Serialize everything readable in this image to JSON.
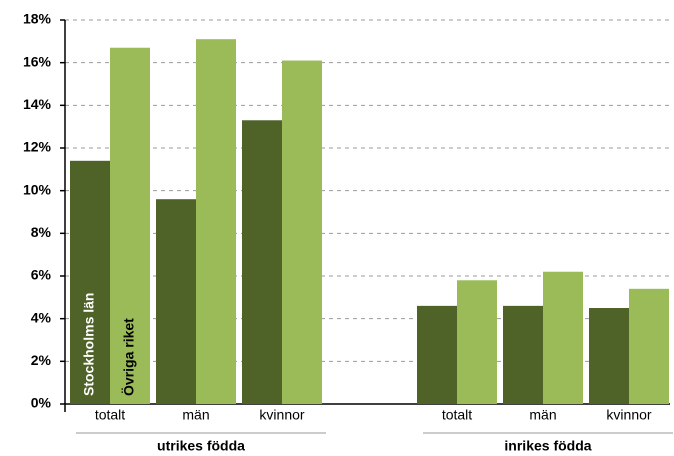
{
  "chart_data": {
    "type": "bar",
    "groups": [
      {
        "name": "utrikes födda",
        "categories": [
          "totalt",
          "män",
          "kvinnor"
        ]
      },
      {
        "name": "inrikes födda",
        "categories": [
          "totalt",
          "män",
          "kvinnor"
        ]
      }
    ],
    "series": [
      {
        "name": "Stockholms län",
        "color": "#4f6228",
        "values": [
          11.4,
          9.6,
          13.3,
          4.6,
          4.6,
          4.5
        ]
      },
      {
        "name": "Övriga riket",
        "color": "#9bbb59",
        "values": [
          16.7,
          17.1,
          16.1,
          5.8,
          6.2,
          5.4
        ]
      }
    ],
    "ylim": [
      0,
      18
    ],
    "yticks": [
      {
        "value": 0,
        "label": "0%"
      },
      {
        "value": 2,
        "label": "2%"
      },
      {
        "value": 4,
        "label": "4%"
      },
      {
        "value": 6,
        "label": "6%"
      },
      {
        "value": 8,
        "label": "8%"
      },
      {
        "value": 10,
        "label": "10%"
      },
      {
        "value": 12,
        "label": "12%"
      },
      {
        "value": 14,
        "label": "14%"
      },
      {
        "value": 16,
        "label": "16%"
      },
      {
        "value": 18,
        "label": "18%"
      }
    ],
    "grid": true
  }
}
